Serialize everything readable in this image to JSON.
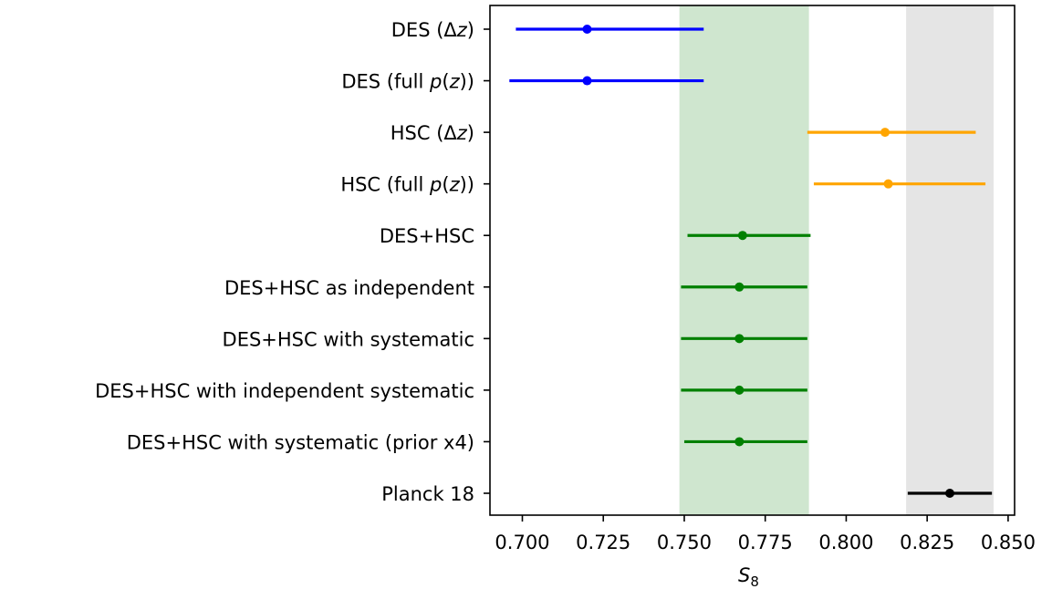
{
  "chart_data": {
    "type": "errorbar",
    "title": "",
    "xlabel": "S_8",
    "ylabel": "",
    "xlim": [
      0.69,
      0.852
    ],
    "xticks": [
      "0.700",
      "0.725",
      "0.750",
      "0.775",
      "0.800",
      "0.825",
      "0.850"
    ],
    "grid": false,
    "bands": [
      {
        "range": [
          0.7485,
          0.7885
        ],
        "color": "#cfe6cf"
      },
      {
        "range": [
          0.8185,
          0.8455
        ],
        "color": "#e5e5e5"
      }
    ],
    "categories": [
      {
        "label": "DES (Δz)",
        "italic_part": "",
        "value": 0.72,
        "low": 0.698,
        "high": 0.756,
        "color": "#0000ff"
      },
      {
        "label": "DES (full p(z))",
        "value": 0.72,
        "low": 0.696,
        "high": 0.756,
        "color": "#0000ff"
      },
      {
        "label": "HSC (Δz)",
        "value": 0.812,
        "low": 0.788,
        "high": 0.84,
        "color": "#ffa500"
      },
      {
        "label": "HSC (full p(z))",
        "value": 0.813,
        "low": 0.79,
        "high": 0.843,
        "color": "#ffa500"
      },
      {
        "label": "DES+HSC",
        "value": 0.768,
        "low": 0.751,
        "high": 0.789,
        "color": "#008000"
      },
      {
        "label": "DES+HSC as independent",
        "value": 0.767,
        "low": 0.749,
        "high": 0.788,
        "color": "#008000"
      },
      {
        "label": "DES+HSC with systematic",
        "value": 0.767,
        "low": 0.749,
        "high": 0.788,
        "color": "#008000"
      },
      {
        "label": "DES+HSC with independent systematic",
        "value": 0.767,
        "low": 0.749,
        "high": 0.788,
        "color": "#008000"
      },
      {
        "label": "DES+HSC with systematic (prior x4)",
        "value": 0.767,
        "low": 0.75,
        "high": 0.788,
        "color": "#008000"
      },
      {
        "label": "Planck 18",
        "value": 0.832,
        "low": 0.819,
        "high": 0.845,
        "color": "#000000"
      }
    ]
  }
}
